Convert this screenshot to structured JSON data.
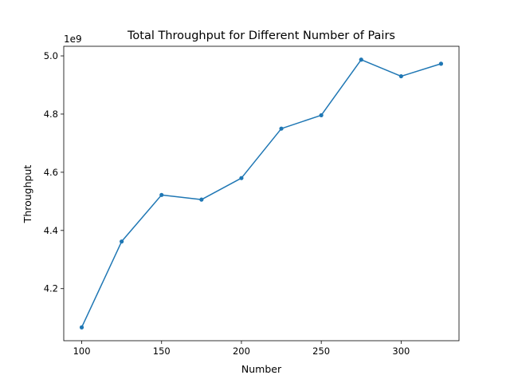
{
  "chart_data": {
    "type": "line",
    "title": "Total Throughput for Different Number of Pairs",
    "xlabel": "Number",
    "ylabel": "Throughput",
    "y_offset_label": "1e9",
    "x": [
      100,
      125,
      150,
      175,
      200,
      225,
      250,
      275,
      300,
      325
    ],
    "series": [
      {
        "values": [
          4.067,
          4.362,
          4.522,
          4.506,
          4.58,
          4.75,
          4.796,
          4.987,
          4.93,
          4.973
        ],
        "color": "#1f77b4"
      }
    ],
    "xlim": [
      88.75,
      336.25
    ],
    "ylim": [
      4.021,
      5.033
    ],
    "x_ticks": [
      100,
      150,
      200,
      250,
      300
    ],
    "y_ticks": [
      4.2,
      4.4,
      4.6,
      4.8,
      5.0
    ],
    "x_tick_labels": [
      "100",
      "150",
      "200",
      "250",
      "300"
    ],
    "y_tick_labels": [
      "4.2",
      "4.4",
      "4.6",
      "4.8",
      "5.0"
    ],
    "grid": false,
    "legend": "none"
  }
}
